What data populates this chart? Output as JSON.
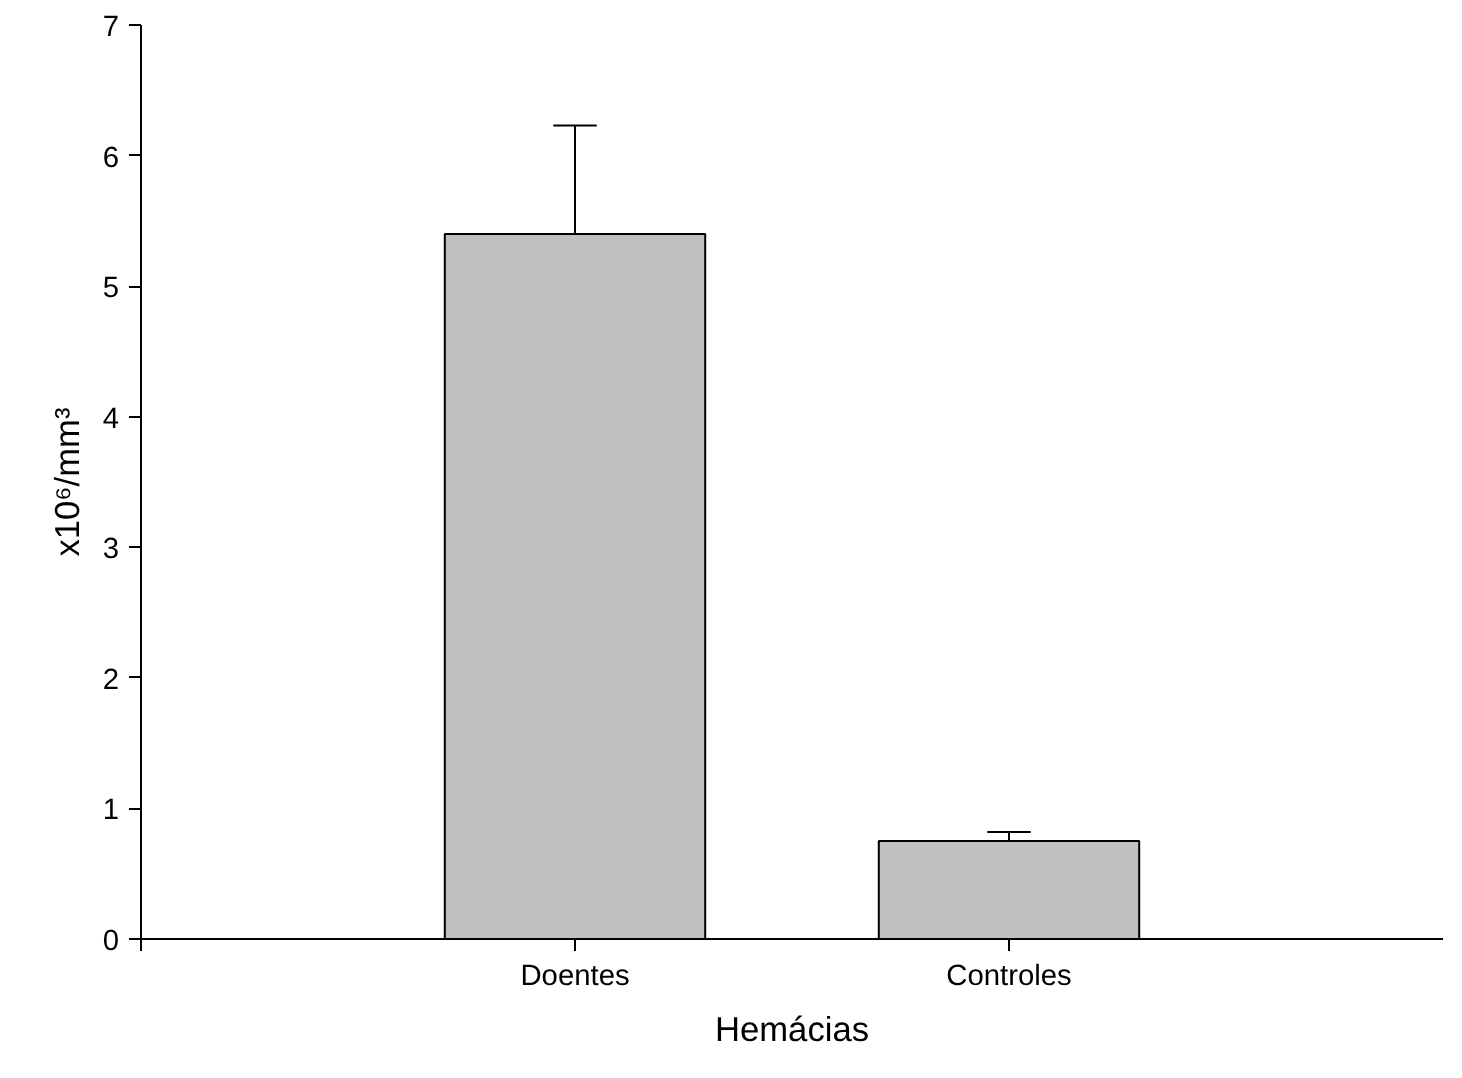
{
  "chart_data": {
    "type": "bar",
    "xlabel": "Hemácias",
    "ylabel": "x10⁶/mm³",
    "categories": [
      "Doentes",
      "Controles"
    ],
    "values": [
      5.4,
      0.75
    ],
    "errors": [
      [
        5.4,
        6.23
      ],
      [
        0.75,
        0.82
      ]
    ],
    "color": "#c0c0c0",
    "ylim": [
      0,
      7
    ],
    "yticks": [
      0,
      1,
      2,
      3,
      4,
      5,
      6,
      7
    ],
    "grid": false
  }
}
